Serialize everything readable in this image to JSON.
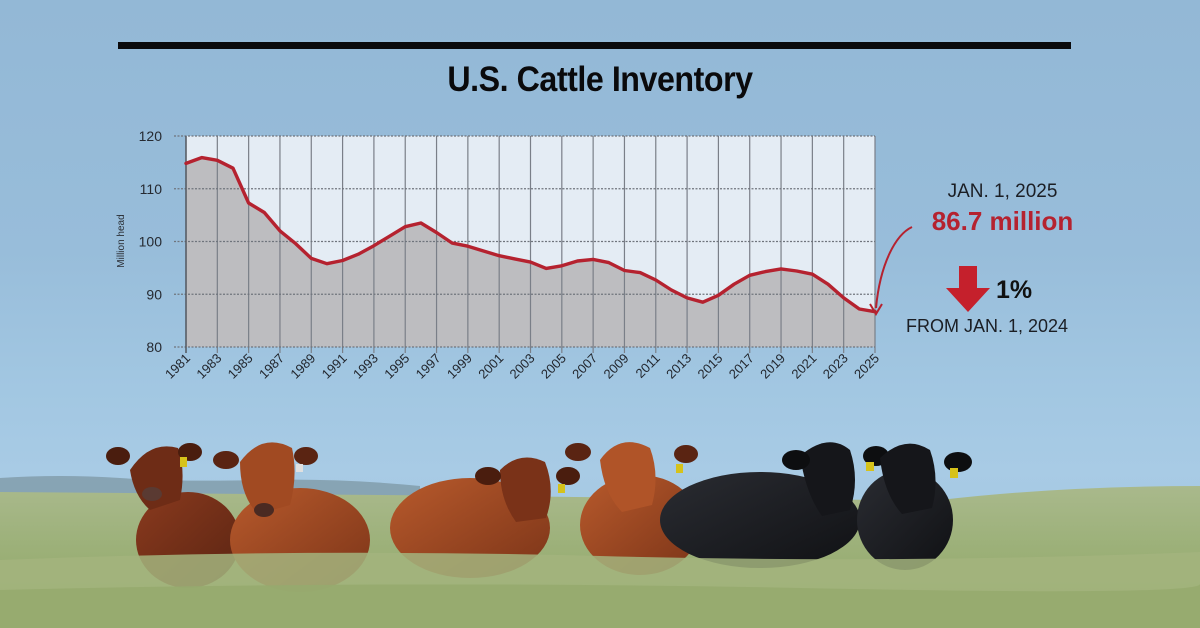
{
  "header": {
    "title": "U.S. Cattle Inventory"
  },
  "annotation": {
    "date_label": "JAN. 1, 2025",
    "value_label": "86.7 million",
    "change_label": "1%",
    "change_direction": "down",
    "comparison_label": "FROM JAN. 1, 2024",
    "accent_color": "#b5222f"
  },
  "photo": {
    "description": "Herd of red and black Angus cattle with yellow ear tags standing in tall prairie grass under a blue sky"
  },
  "chart_data": {
    "type": "area",
    "title": "U.S. Cattle Inventory",
    "xlabel": "",
    "ylabel": "Million head",
    "ylim": [
      80,
      120
    ],
    "yticks": [
      80,
      90,
      100,
      110,
      120
    ],
    "xlim": [
      1981,
      2025
    ],
    "xtick_labels": [
      "1981",
      "1983",
      "1985",
      "1987",
      "1989",
      "1991",
      "1993",
      "1995",
      "1997",
      "1999",
      "2001",
      "2003",
      "2005",
      "2007",
      "2009",
      "2011",
      "2013",
      "2015",
      "2017",
      "2019",
      "2021",
      "2023",
      "2025"
    ],
    "grid": true,
    "legend": "none",
    "line_color": "#b5222f",
    "fill_color": "#bdbdc0",
    "plot_bg": "#e4ecf4",
    "x": [
      1981,
      1982,
      1983,
      1984,
      1985,
      1986,
      1987,
      1988,
      1989,
      1990,
      1991,
      1992,
      1993,
      1994,
      1995,
      1996,
      1997,
      1998,
      1999,
      2000,
      2001,
      2002,
      2003,
      2004,
      2005,
      2006,
      2007,
      2008,
      2009,
      2010,
      2011,
      2012,
      2013,
      2014,
      2015,
      2016,
      2017,
      2018,
      2019,
      2020,
      2021,
      2022,
      2023,
      2024,
      2025
    ],
    "series": [
      {
        "name": "Cattle inventory (million head)",
        "values": [
          114.8,
          115.9,
          115.4,
          113.9,
          107.3,
          105.5,
          102.0,
          99.6,
          96.8,
          95.8,
          96.4,
          97.6,
          99.2,
          101.0,
          102.8,
          103.5,
          101.7,
          99.7,
          99.1,
          98.2,
          97.3,
          96.7,
          96.1,
          94.9,
          95.4,
          96.3,
          96.6,
          96.0,
          94.5,
          94.1,
          92.7,
          90.8,
          89.3,
          88.5,
          89.8,
          91.9,
          93.6,
          94.3,
          94.8,
          94.4,
          93.8,
          91.9,
          89.3,
          87.2,
          86.7
        ]
      }
    ],
    "annotations": [
      {
        "x": 2025,
        "y": 86.7,
        "text": "JAN. 1, 2025 86.7 million"
      },
      {
        "text": "down 1% FROM JAN. 1, 2024"
      }
    ]
  }
}
